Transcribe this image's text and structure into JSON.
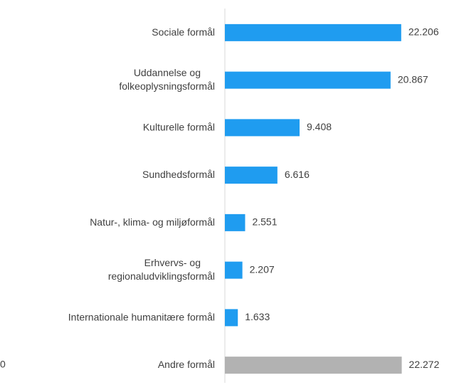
{
  "chart_data": {
    "type": "barh",
    "categories": [
      "Sociale formål",
      "Uddannelse og\nfolkeoplysningsformål",
      "Kulturelle formål",
      "Sundhedsformål",
      "Natur-, klima- og miljøformål",
      "Erhvervs- og\nregionaludviklingsformål",
      "Internationale humanitære formål",
      "Andre formål"
    ],
    "values": [
      22206,
      20867,
      9408,
      6616,
      2551,
      2207,
      1633,
      22272
    ],
    "value_labels": [
      "22.206",
      "20.867",
      "9.408",
      "6.616",
      "2.551",
      "2.207",
      "1.633",
      "22.272"
    ],
    "colors": [
      "#1f9cf0",
      "#1f9cf0",
      "#1f9cf0",
      "#1f9cf0",
      "#1f9cf0",
      "#1f9cf0",
      "#1f9cf0",
      "#b2b2b2"
    ],
    "xlim": [
      0,
      25000
    ],
    "annotation": "0"
  }
}
